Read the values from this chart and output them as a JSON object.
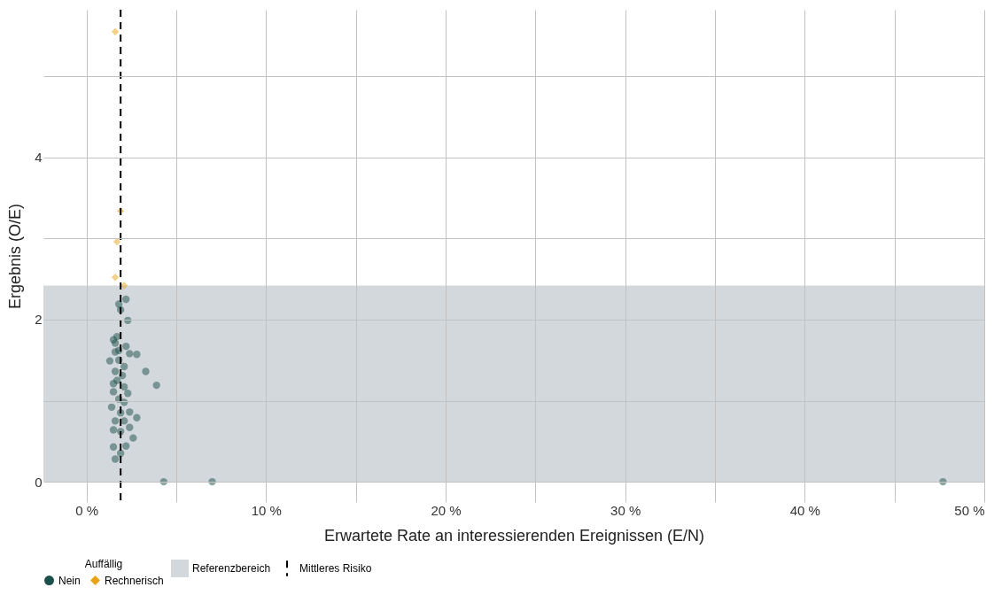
{
  "chart_data": {
    "type": "scatter",
    "xlabel": "Erwartete Rate an interessierenden Ereignissen (E/N)",
    "ylabel": "Ergebnis (O/E)",
    "legend_title": "Auffällig",
    "legend": "bottom",
    "grid": true,
    "xlim": [
      -2.4,
      50
    ],
    "xticks": [
      {
        "value": 0,
        "label": "0 %"
      },
      {
        "value": 5,
        "label": null
      },
      {
        "value": 10,
        "label": "10 %"
      },
      {
        "value": 15,
        "label": null
      },
      {
        "value": 20,
        "label": "20 %"
      },
      {
        "value": 25,
        "label": null
      },
      {
        "value": 30,
        "label": "30 %"
      },
      {
        "value": 35,
        "label": null
      },
      {
        "value": 40,
        "label": "40 %"
      },
      {
        "value": 45,
        "label": null
      },
      {
        "value": 50,
        "label": "50 %"
      }
    ],
    "ylim": [
      -0.25,
      5.82
    ],
    "yticks": [
      0,
      {
        "value": 1,
        "label": null
      },
      2,
      {
        "value": 3,
        "label": null
      },
      4,
      {
        "value": 5,
        "label": null
      }
    ],
    "series": [
      {
        "name": "Nein",
        "color": "#1b4f4a",
        "marker": "circle",
        "x": [
          2.2,
          1.8,
          1.9,
          2.3,
          1.7,
          1.5,
          1.6,
          2.2,
          2.4,
          2.8,
          1.6,
          1.3,
          1.8,
          2.1,
          3.3,
          1.6,
          2.0,
          1.5,
          3.9,
          2.1,
          2.3,
          1.5,
          1.8,
          2.1,
          1.4,
          2.4,
          2.8,
          1.6,
          2.1,
          2.4,
          1.5,
          1.9,
          2.6,
          2.2,
          1.5,
          1.9,
          1.6,
          1.8,
          1.7,
          1.9,
          4.3,
          7.0,
          47.7
        ],
        "values": [
          2.25,
          2.19,
          2.12,
          1.99,
          1.79,
          1.75,
          1.71,
          1.67,
          1.58,
          1.57,
          1.6,
          1.49,
          1.5,
          1.42,
          1.36,
          1.36,
          1.31,
          1.21,
          1.19,
          1.17,
          1.09,
          1.11,
          1.02,
          0.98,
          0.92,
          0.86,
          0.79,
          0.75,
          0.75,
          0.67,
          0.64,
          0.62,
          0.54,
          0.44,
          0.43,
          0.35,
          0.28,
          1.62,
          1.25,
          0.85,
          0,
          0,
          0
        ]
      },
      {
        "name": "Rechnerisch",
        "color": "#e8a317",
        "marker": "diamond",
        "x": [
          1.6,
          1.9,
          1.7,
          1.6,
          2.1
        ],
        "values": [
          5.55,
          3.34,
          2.96,
          2.52,
          2.42
        ]
      }
    ],
    "bands": [
      {
        "axis": "y",
        "from": 0,
        "to": 2.42,
        "label": "Referenzbereich",
        "color": "#d3d8dc"
      }
    ],
    "ref_lines": [
      {
        "axis": "x",
        "value": 1.9,
        "label": "Mittleres Risiko",
        "color": "#000000",
        "line_style": "dashed"
      }
    ]
  }
}
